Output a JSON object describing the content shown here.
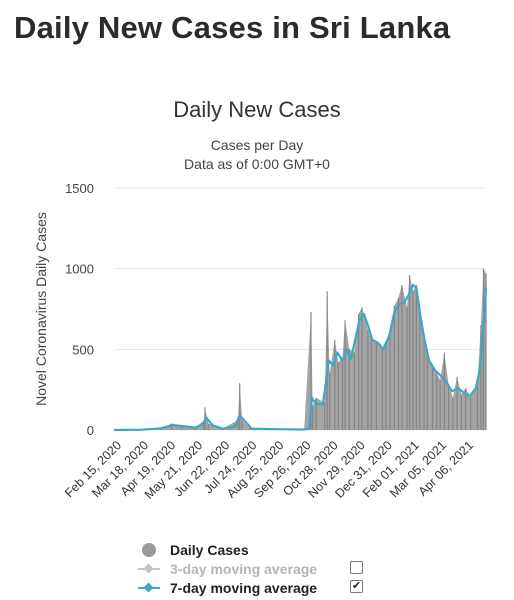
{
  "page": {
    "heading": "Daily New Cases in Sri Lanka"
  },
  "colors": {
    "bars": "#9a9a9a",
    "line7": "#3fa6c6",
    "line3_disabled": "#c4c4c4",
    "grid": "#e6e6e6"
  },
  "chart_data": {
    "type": "bar",
    "title": "Daily New Cases",
    "subtitle": "Cases per Day",
    "subtitle2": "Data as of 0:00 GMT+0",
    "ylabel": "Novel Coronavirus Daily Cases",
    "xlabel": "",
    "ylim": [
      0,
      1500
    ],
    "yticks": [
      0,
      500,
      1000,
      1500
    ],
    "grid": true,
    "x_range": [
      "2020-02-15",
      "2021-04-28"
    ],
    "xtick_labels": [
      "Feb 15, 2020",
      "Mar 18, 2020",
      "Apr 19, 2020",
      "May 21, 2020",
      "Jun 22, 2020",
      "Jul 24, 2020",
      "Aug 25, 2020",
      "Sep 26, 2020",
      "Oct 28, 2020",
      "Nov 29, 2020",
      "Dec 31, 2020",
      "Feb 01, 2021",
      "Mar 05, 2021",
      "Apr 06, 2021"
    ],
    "series": [
      {
        "name": "Daily Cases",
        "kind": "bar",
        "enabled": true,
        "points": [
          [
            "2020-02-15",
            0
          ],
          [
            "2020-03-18",
            5
          ],
          [
            "2020-04-10",
            10
          ],
          [
            "2020-04-23",
            40
          ],
          [
            "2020-05-05",
            30
          ],
          [
            "2020-05-21",
            15
          ],
          [
            "2020-05-31",
            60
          ],
          [
            "2020-06-01",
            140
          ],
          [
            "2020-06-05",
            40
          ],
          [
            "2020-06-22",
            10
          ],
          [
            "2020-07-10",
            60
          ],
          [
            "2020-07-12",
            290
          ],
          [
            "2020-07-15",
            60
          ],
          [
            "2020-07-24",
            10
          ],
          [
            "2020-08-25",
            5
          ],
          [
            "2020-09-26",
            5
          ],
          [
            "2020-10-04",
            730
          ],
          [
            "2020-10-06",
            150
          ],
          [
            "2020-10-10",
            200
          ],
          [
            "2020-10-20",
            170
          ],
          [
            "2020-10-23",
            860
          ],
          [
            "2020-10-26",
            350
          ],
          [
            "2020-11-01",
            560
          ],
          [
            "2020-11-05",
            420
          ],
          [
            "2020-11-10",
            450
          ],
          [
            "2020-11-13",
            680
          ],
          [
            "2020-11-18",
            500
          ],
          [
            "2020-11-24",
            480
          ],
          [
            "2020-11-29",
            720
          ],
          [
            "2020-12-03",
            760
          ],
          [
            "2020-12-10",
            620
          ],
          [
            "2020-12-14",
            560
          ],
          [
            "2020-12-20",
            550
          ],
          [
            "2020-12-27",
            510
          ],
          [
            "2020-12-31",
            550
          ],
          [
            "2021-01-05",
            620
          ],
          [
            "2021-01-10",
            770
          ],
          [
            "2021-01-15",
            820
          ],
          [
            "2021-01-19",
            900
          ],
          [
            "2021-01-25",
            760
          ],
          [
            "2021-01-28",
            960
          ],
          [
            "2021-02-01",
            860
          ],
          [
            "2021-02-05",
            900
          ],
          [
            "2021-02-09",
            760
          ],
          [
            "2021-02-14",
            600
          ],
          [
            "2021-02-18",
            470
          ],
          [
            "2021-02-24",
            400
          ],
          [
            "2021-03-01",
            350
          ],
          [
            "2021-03-05",
            310
          ],
          [
            "2021-03-10",
            480
          ],
          [
            "2021-03-15",
            280
          ],
          [
            "2021-03-20",
            200
          ],
          [
            "2021-03-25",
            330
          ],
          [
            "2021-03-30",
            220
          ],
          [
            "2021-04-04",
            260
          ],
          [
            "2021-04-10",
            200
          ],
          [
            "2021-04-18",
            300
          ],
          [
            "2021-04-22",
            650
          ],
          [
            "2021-04-25",
            1000
          ],
          [
            "2021-04-28",
            970
          ]
        ]
      },
      {
        "name": "3-day moving average",
        "kind": "line",
        "enabled": false,
        "points": []
      },
      {
        "name": "7-day moving average",
        "kind": "line",
        "enabled": true,
        "points": [
          [
            "2020-02-15",
            0
          ],
          [
            "2020-03-18",
            2
          ],
          [
            "2020-04-10",
            10
          ],
          [
            "2020-04-23",
            30
          ],
          [
            "2020-05-05",
            25
          ],
          [
            "2020-05-21",
            15
          ],
          [
            "2020-05-31",
            40
          ],
          [
            "2020-06-03",
            75
          ],
          [
            "2020-06-10",
            30
          ],
          [
            "2020-06-22",
            8
          ],
          [
            "2020-07-06",
            20
          ],
          [
            "2020-07-12",
            90
          ],
          [
            "2020-07-19",
            50
          ],
          [
            "2020-07-26",
            8
          ],
          [
            "2020-08-25",
            5
          ],
          [
            "2020-09-26",
            3
          ],
          [
            "2020-10-02",
            10
          ],
          [
            "2020-10-05",
            200
          ],
          [
            "2020-10-10",
            160
          ],
          [
            "2020-10-18",
            160
          ],
          [
            "2020-10-25",
            430
          ],
          [
            "2020-10-30",
            400
          ],
          [
            "2020-11-04",
            480
          ],
          [
            "2020-11-10",
            430
          ],
          [
            "2020-11-15",
            500
          ],
          [
            "2020-11-20",
            440
          ],
          [
            "2020-11-25",
            560
          ],
          [
            "2020-11-30",
            680
          ],
          [
            "2020-12-05",
            720
          ],
          [
            "2020-12-10",
            650
          ],
          [
            "2020-12-15",
            560
          ],
          [
            "2020-12-22",
            540
          ],
          [
            "2020-12-28",
            500
          ],
          [
            "2021-01-04",
            580
          ],
          [
            "2021-01-10",
            730
          ],
          [
            "2021-01-16",
            780
          ],
          [
            "2021-01-22",
            790
          ],
          [
            "2021-01-28",
            850
          ],
          [
            "2021-02-01",
            900
          ],
          [
            "2021-02-05",
            880
          ],
          [
            "2021-02-10",
            700
          ],
          [
            "2021-02-15",
            550
          ],
          [
            "2021-02-20",
            430
          ],
          [
            "2021-02-27",
            370
          ],
          [
            "2021-03-05",
            340
          ],
          [
            "2021-03-12",
            300
          ],
          [
            "2021-03-19",
            240
          ],
          [
            "2021-03-26",
            260
          ],
          [
            "2021-04-02",
            230
          ],
          [
            "2021-04-09",
            210
          ],
          [
            "2021-04-16",
            260
          ],
          [
            "2021-04-21",
            380
          ],
          [
            "2021-04-25",
            650
          ],
          [
            "2021-04-28",
            880
          ]
        ]
      }
    ],
    "legend": {
      "placement": "bottom",
      "items": [
        {
          "label": "Daily Cases",
          "marker": "dot",
          "color": "#9a9a9a",
          "checkbox": false,
          "checked": false
        },
        {
          "label": "3-day moving average",
          "marker": "line",
          "color": "#c4c4c4",
          "checkbox": true,
          "checked": false
        },
        {
          "label": "7-day moving average",
          "marker": "line",
          "color": "#3fa6c6",
          "checkbox": true,
          "checked": true
        }
      ]
    }
  }
}
